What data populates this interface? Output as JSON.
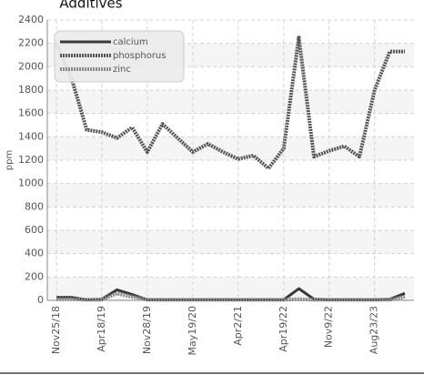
{
  "chart_data": {
    "type": "line",
    "title": "Additives",
    "y_label": "ppm",
    "categories": [
      "Nov25/18",
      null,
      null,
      "Apr18/19",
      null,
      null,
      "Nov28/19",
      null,
      null,
      "May19/20",
      null,
      null,
      "Apr2/21",
      null,
      null,
      "Apr19/22",
      null,
      null,
      "Nov9/22",
      null,
      null,
      "Aug23/23",
      null,
      null
    ],
    "series": [
      {
        "name": "calcium",
        "color": "#3a3a3a",
        "dash": "solid",
        "values": [
          25,
          25,
          5,
          10,
          90,
          50,
          5,
          5,
          5,
          5,
          5,
          5,
          5,
          5,
          5,
          5,
          100,
          10,
          5,
          5,
          5,
          5,
          10,
          60
        ]
      },
      {
        "name": "phosphorus",
        "color": "#555555",
        "dash": "dotted",
        "values": [
          2200,
          1900,
          1460,
          1440,
          1390,
          1480,
          1270,
          1510,
          1390,
          1270,
          1340,
          1270,
          1210,
          1240,
          1130,
          1300,
          2250,
          1230,
          1280,
          1320,
          1230,
          1800,
          2130,
          2130
        ]
      },
      {
        "name": "zinc",
        "color": "#8a8a8a",
        "dash": "dotted",
        "values": [
          10,
          10,
          5,
          5,
          60,
          30,
          5,
          5,
          5,
          5,
          5,
          5,
          5,
          5,
          5,
          5,
          10,
          5,
          5,
          5,
          5,
          5,
          5,
          30
        ]
      }
    ],
    "ylim": [
      0,
      2400
    ],
    "yticks": [
      0,
      200,
      400,
      600,
      800,
      1000,
      1200,
      1400,
      1600,
      1800,
      2000,
      2200,
      2400
    ],
    "grid": true,
    "legend": "top-left"
  }
}
